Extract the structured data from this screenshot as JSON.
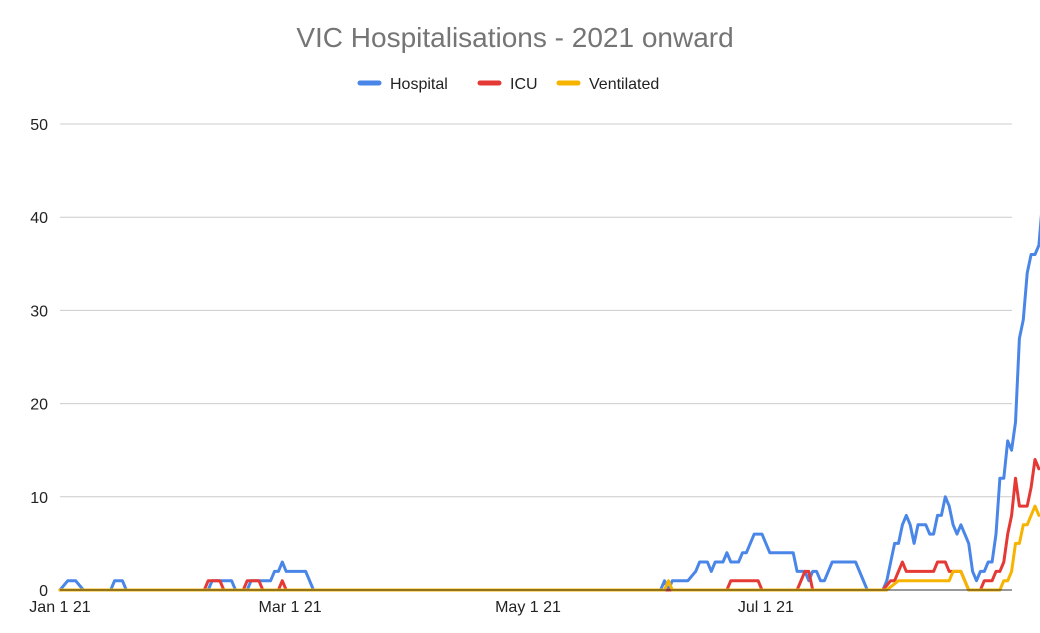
{
  "chart_data": {
    "type": "line",
    "title": "VIC Hospitalisations - 2021 onward",
    "xlabel": "",
    "ylabel": "",
    "ylim": [
      0,
      50
    ],
    "yticks": [
      0,
      10,
      20,
      30,
      40,
      50
    ],
    "x_range": [
      "2021-01-01",
      "2021-08-31"
    ],
    "xticks": [
      {
        "date": "2021-01-01",
        "label": "Jan 1 21"
      },
      {
        "date": "2021-03-01",
        "label": "Mar 1 21"
      },
      {
        "date": "2021-05-01",
        "label": "May 1 21"
      },
      {
        "date": "2021-07-01",
        "label": "Jul 1 21"
      }
    ],
    "grid": true,
    "legend_position": "top",
    "series": [
      {
        "name": "Hospital",
        "color": "#4a86e8",
        "points": [
          [
            "2021-01-01",
            0
          ],
          [
            "2021-01-03",
            1
          ],
          [
            "2021-01-05",
            1
          ],
          [
            "2021-01-07",
            0
          ],
          [
            "2021-01-14",
            0
          ],
          [
            "2021-01-15",
            1
          ],
          [
            "2021-01-17",
            1
          ],
          [
            "2021-01-18",
            0
          ],
          [
            "2021-02-08",
            0
          ],
          [
            "2021-02-09",
            1
          ],
          [
            "2021-02-14",
            1
          ],
          [
            "2021-02-15",
            0
          ],
          [
            "2021-02-18",
            0
          ],
          [
            "2021-02-19",
            1
          ],
          [
            "2021-02-24",
            1
          ],
          [
            "2021-02-25",
            2
          ],
          [
            "2021-02-26",
            2
          ],
          [
            "2021-02-27",
            3
          ],
          [
            "2021-02-28",
            2
          ],
          [
            "2021-03-05",
            2
          ],
          [
            "2021-03-07",
            0
          ],
          [
            "2021-06-04",
            0
          ],
          [
            "2021-06-05",
            1
          ],
          [
            "2021-06-06",
            0
          ],
          [
            "2021-06-07",
            1
          ],
          [
            "2021-06-11",
            1
          ],
          [
            "2021-06-13",
            2
          ],
          [
            "2021-06-14",
            3
          ],
          [
            "2021-06-16",
            3
          ],
          [
            "2021-06-17",
            2
          ],
          [
            "2021-06-18",
            3
          ],
          [
            "2021-06-20",
            3
          ],
          [
            "2021-06-21",
            4
          ],
          [
            "2021-06-22",
            3
          ],
          [
            "2021-06-24",
            3
          ],
          [
            "2021-06-25",
            4
          ],
          [
            "2021-06-26",
            4
          ],
          [
            "2021-06-28",
            6
          ],
          [
            "2021-06-30",
            6
          ],
          [
            "2021-07-02",
            4
          ],
          [
            "2021-07-08",
            4
          ],
          [
            "2021-07-09",
            2
          ],
          [
            "2021-07-11",
            2
          ],
          [
            "2021-07-12",
            1
          ],
          [
            "2021-07-13",
            2
          ],
          [
            "2021-07-14",
            2
          ],
          [
            "2021-07-15",
            1
          ],
          [
            "2021-07-16",
            1
          ],
          [
            "2021-07-17",
            2
          ],
          [
            "2021-07-18",
            3
          ],
          [
            "2021-07-24",
            3
          ],
          [
            "2021-07-27",
            0
          ],
          [
            "2021-07-31",
            0
          ],
          [
            "2021-08-01",
            1
          ],
          [
            "2021-08-02",
            3
          ],
          [
            "2021-08-03",
            5
          ],
          [
            "2021-08-04",
            5
          ],
          [
            "2021-08-05",
            7
          ],
          [
            "2021-08-06",
            8
          ],
          [
            "2021-08-07",
            7
          ],
          [
            "2021-08-08",
            5
          ],
          [
            "2021-08-09",
            7
          ],
          [
            "2021-08-11",
            7
          ],
          [
            "2021-08-12",
            6
          ],
          [
            "2021-08-13",
            6
          ],
          [
            "2021-08-14",
            8
          ],
          [
            "2021-08-15",
            8
          ],
          [
            "2021-08-16",
            10
          ],
          [
            "2021-08-17",
            9
          ],
          [
            "2021-08-18",
            7
          ],
          [
            "2021-08-19",
            6
          ],
          [
            "2021-08-20",
            7
          ],
          [
            "2021-08-21",
            6
          ],
          [
            "2021-08-22",
            5
          ],
          [
            "2021-08-23",
            2
          ],
          [
            "2021-08-24",
            1
          ],
          [
            "2021-08-25",
            2
          ],
          [
            "2021-08-26",
            2
          ],
          [
            "2021-08-27",
            3
          ],
          [
            "2021-08-28",
            3
          ],
          [
            "2021-08-29",
            6
          ],
          [
            "2021-08-30",
            12
          ],
          [
            "2021-08-31",
            12
          ],
          [
            "2021-09-01",
            16
          ],
          [
            "2021-09-02",
            15
          ],
          [
            "2021-09-03",
            18
          ],
          [
            "2021-09-04",
            27
          ],
          [
            "2021-09-05",
            29
          ],
          [
            "2021-09-06",
            34
          ],
          [
            "2021-09-07",
            36
          ],
          [
            "2021-09-08",
            36
          ],
          [
            "2021-09-09",
            37
          ],
          [
            "2021-09-10",
            42
          ]
        ]
      },
      {
        "name": "ICU",
        "color": "#e53935",
        "points": [
          [
            "2021-01-01",
            0
          ],
          [
            "2021-02-07",
            0
          ],
          [
            "2021-02-08",
            1
          ],
          [
            "2021-02-11",
            1
          ],
          [
            "2021-02-12",
            0
          ],
          [
            "2021-02-17",
            0
          ],
          [
            "2021-02-18",
            1
          ],
          [
            "2021-02-21",
            1
          ],
          [
            "2021-02-22",
            0
          ],
          [
            "2021-02-26",
            0
          ],
          [
            "2021-02-27",
            1
          ],
          [
            "2021-02-28",
            0
          ],
          [
            "2021-06-21",
            0
          ],
          [
            "2021-06-22",
            1
          ],
          [
            "2021-06-29",
            1
          ],
          [
            "2021-06-30",
            0
          ],
          [
            "2021-07-09",
            0
          ],
          [
            "2021-07-11",
            2
          ],
          [
            "2021-07-12",
            2
          ],
          [
            "2021-07-13",
            0
          ],
          [
            "2021-07-31",
            0
          ],
          [
            "2021-08-02",
            1
          ],
          [
            "2021-08-03",
            1
          ],
          [
            "2021-08-05",
            3
          ],
          [
            "2021-08-06",
            2
          ],
          [
            "2021-08-13",
            2
          ],
          [
            "2021-08-14",
            3
          ],
          [
            "2021-08-16",
            3
          ],
          [
            "2021-08-17",
            2
          ],
          [
            "2021-08-20",
            2
          ],
          [
            "2021-08-22",
            0
          ],
          [
            "2021-08-25",
            0
          ],
          [
            "2021-08-26",
            1
          ],
          [
            "2021-08-28",
            1
          ],
          [
            "2021-08-29",
            2
          ],
          [
            "2021-08-30",
            2
          ],
          [
            "2021-08-31",
            3
          ],
          [
            "2021-09-01",
            6
          ],
          [
            "2021-09-02",
            8
          ],
          [
            "2021-09-03",
            12
          ],
          [
            "2021-09-04",
            9
          ],
          [
            "2021-09-06",
            9
          ],
          [
            "2021-09-07",
            11
          ],
          [
            "2021-09-08",
            14
          ],
          [
            "2021-09-09",
            13
          ]
        ]
      },
      {
        "name": "Ventilated",
        "color": "#f6b400",
        "points": [
          [
            "2021-01-01",
            0
          ],
          [
            "2021-06-05",
            0
          ],
          [
            "2021-06-06",
            1
          ],
          [
            "2021-06-07",
            0
          ],
          [
            "2021-08-01",
            0
          ],
          [
            "2021-08-04",
            1
          ],
          [
            "2021-08-17",
            1
          ],
          [
            "2021-08-18",
            2
          ],
          [
            "2021-08-20",
            2
          ],
          [
            "2021-08-22",
            0
          ],
          [
            "2021-08-30",
            0
          ],
          [
            "2021-08-31",
            1
          ],
          [
            "2021-09-01",
            1
          ],
          [
            "2021-09-02",
            2
          ],
          [
            "2021-09-03",
            5
          ],
          [
            "2021-09-04",
            5
          ],
          [
            "2021-09-05",
            7
          ],
          [
            "2021-09-06",
            7
          ],
          [
            "2021-09-07",
            8
          ],
          [
            "2021-09-08",
            9
          ],
          [
            "2021-09-09",
            8
          ]
        ]
      }
    ]
  }
}
